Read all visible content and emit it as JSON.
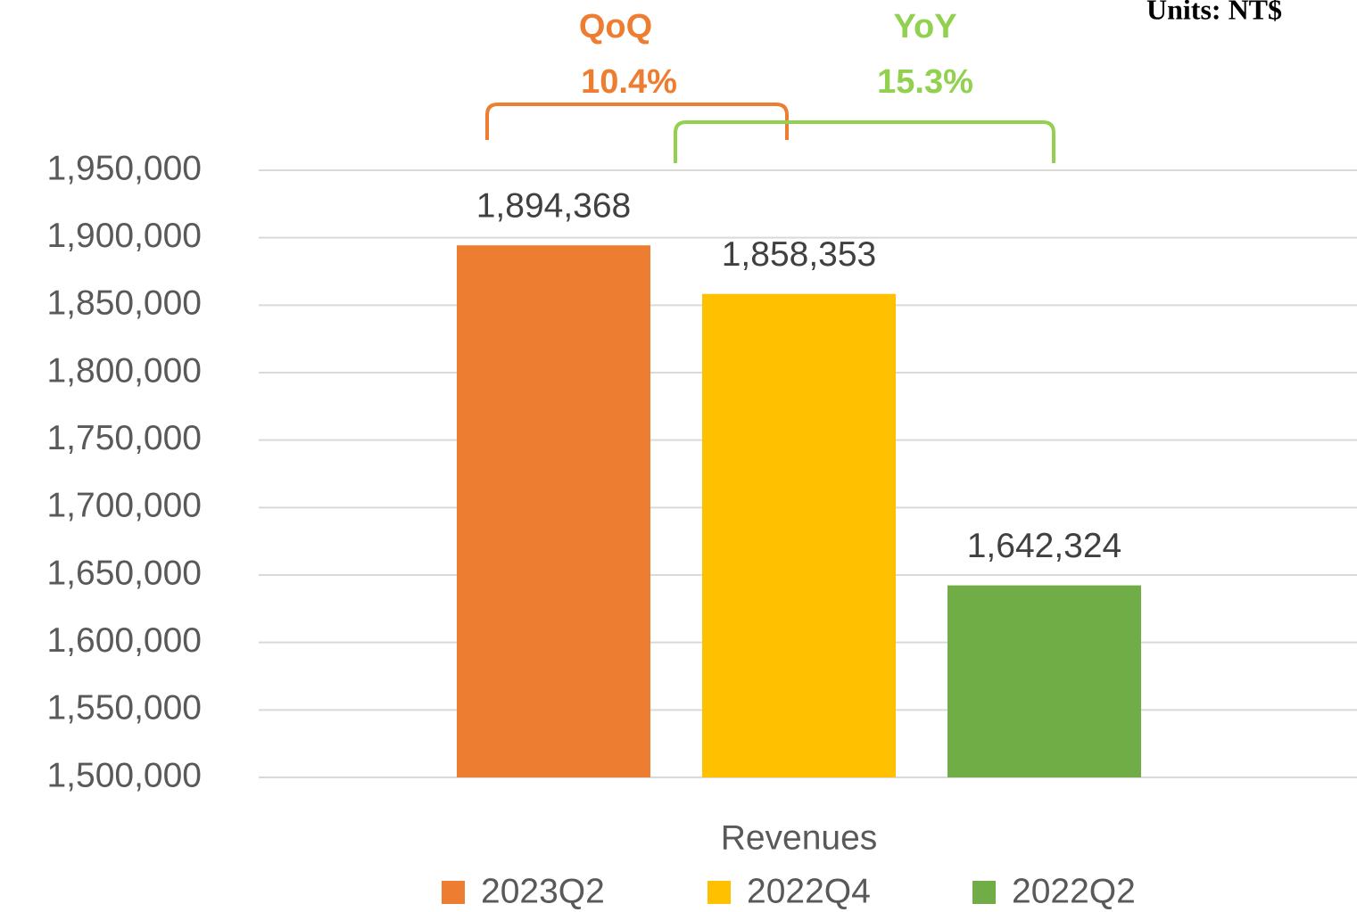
{
  "chart_data": {
    "type": "bar",
    "units": "Units: NT$",
    "categories": [
      "Revenues"
    ],
    "series": [
      {
        "name": "2023Q2",
        "color": "#ed7d31",
        "values": [
          1894368
        ],
        "value_labels": [
          "1,894,368"
        ]
      },
      {
        "name": "2022Q4",
        "color": "#ffc000",
        "values": [
          1858353
        ],
        "value_labels": [
          "1,858,353"
        ]
      },
      {
        "name": "2022Q2",
        "color": "#70ad47",
        "values": [
          1642324
        ],
        "value_labels": [
          "1,642,324"
        ]
      }
    ],
    "ylim": [
      1500000,
      1950000
    ],
    "yticks": [
      {
        "value": 1500000,
        "label": "1,500,000"
      },
      {
        "value": 1550000,
        "label": "1,550,000"
      },
      {
        "value": 1600000,
        "label": "1,600,000"
      },
      {
        "value": 1650000,
        "label": "1,650,000"
      },
      {
        "value": 1700000,
        "label": "1,700,000"
      },
      {
        "value": 1750000,
        "label": "1,750,000"
      },
      {
        "value": 1800000,
        "label": "1,800,000"
      },
      {
        "value": 1850000,
        "label": "1,850,000"
      },
      {
        "value": 1900000,
        "label": "1,900,000"
      },
      {
        "value": 1950000,
        "label": "1,950,000"
      }
    ],
    "grid": true,
    "legend": "bottom",
    "annotations": [
      {
        "title": "QoQ",
        "text": "10.4%",
        "color": "#ed7d31"
      },
      {
        "title": "YoY",
        "text": "15.3%",
        "color": "#92d050"
      }
    ]
  }
}
